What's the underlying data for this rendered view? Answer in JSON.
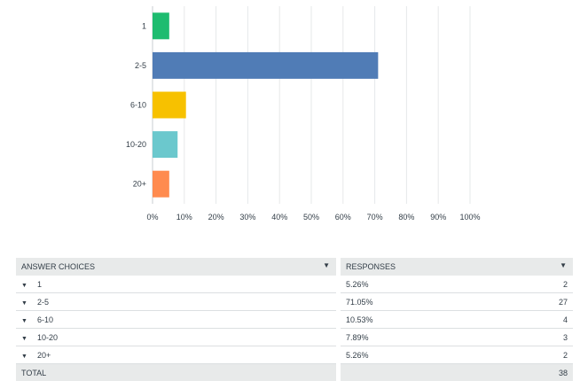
{
  "chart_data": {
    "type": "bar",
    "orientation": "horizontal",
    "categories": [
      "1",
      "2-5",
      "6-10",
      "10-20",
      "20+"
    ],
    "values": [
      5.26,
      71.05,
      10.53,
      7.89,
      5.26
    ],
    "colors": [
      "#1ebc70",
      "#507cb6",
      "#f7c100",
      "#6bc8cd",
      "#ff8b4f"
    ],
    "xlim": [
      0,
      100
    ],
    "x_ticks": [
      "0%",
      "10%",
      "20%",
      "30%",
      "40%",
      "50%",
      "60%",
      "70%",
      "80%",
      "90%",
      "100%"
    ],
    "grid": true,
    "legend": "none"
  },
  "table": {
    "headers": {
      "answer": "ANSWER CHOICES",
      "responses": "RESPONSES"
    },
    "rows": [
      {
        "choice": "1",
        "percent": "5.26%",
        "count": "2"
      },
      {
        "choice": "2-5",
        "percent": "71.05%",
        "count": "27"
      },
      {
        "choice": "6-10",
        "percent": "10.53%",
        "count": "4"
      },
      {
        "choice": "10-20",
        "percent": "7.89%",
        "count": "3"
      },
      {
        "choice": "20+",
        "percent": "5.26%",
        "count": "2"
      }
    ],
    "total": {
      "label": "TOTAL",
      "count": "38"
    }
  },
  "icons": {
    "sort": "sort-down-icon",
    "row_expand": "caret-down-icon"
  }
}
